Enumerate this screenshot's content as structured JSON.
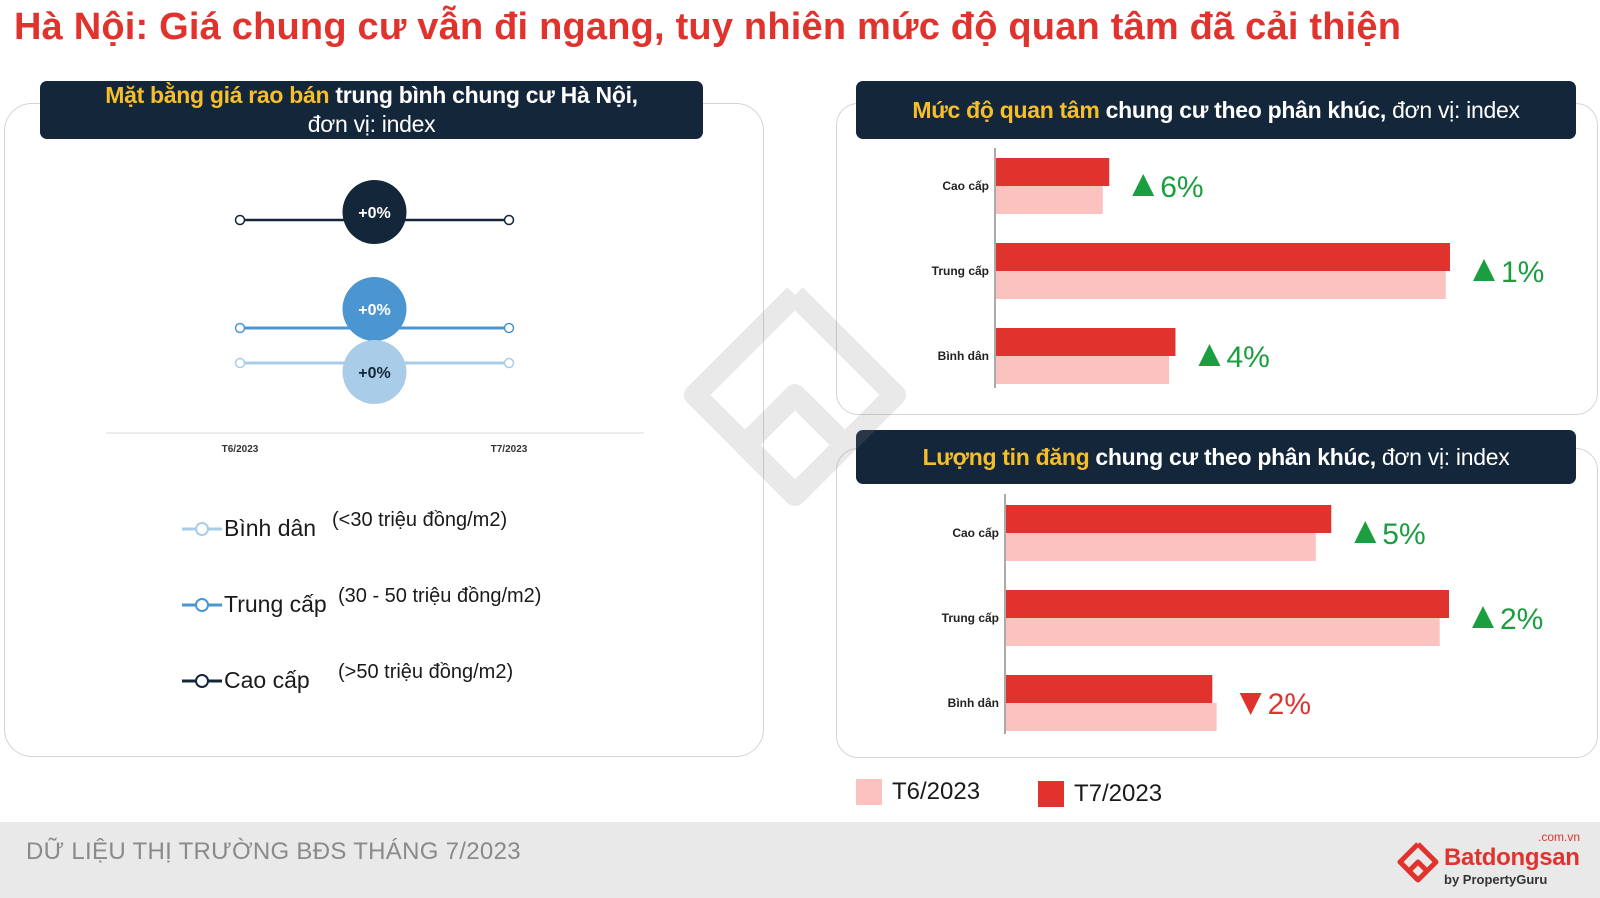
{
  "title": "Hà Nội: Giá chung cư vẫn đi ngang, tuy nhiên mức độ quan tâm đã cải thiện",
  "left_panel": {
    "header_highlight": "Mặt bằng giá rao bán",
    "header_rest": " trung bình chung cư Hà Nội,",
    "header_line2": "đơn vị: index",
    "legend": [
      {
        "label": "Bình dân",
        "range": "(<30 triệu đồng/m2)",
        "color": "#a9cde8"
      },
      {
        "label": "Trung cấp",
        "range": "(30 - 50 triệu đồng/m2)",
        "color": "#4b96d1"
      },
      {
        "label": "Cao cấp",
        "range": "(>50 triệu đồng/m2)",
        "color": "#14263a"
      }
    ]
  },
  "right_top": {
    "header_highlight": "Mức độ quan tâm",
    "header_bold": " chung cư theo phân khúc,",
    "header_rest": " đơn vị: index"
  },
  "right_bottom": {
    "header_highlight": "Lượng tin đăng",
    "header_bold": " chung cư theo phân khúc,",
    "header_rest": " đơn vị: index"
  },
  "bar_legend": [
    {
      "label": "T6/2023",
      "color": "#fbc2c0"
    },
    {
      "label": "T7/2023",
      "color": "#e0332e"
    }
  ],
  "footer": {
    "text": "DỮ LIỆU THỊ TRƯỜNG BĐS THÁNG 7/2023",
    "brand": "Batdongsan",
    "brand_suffix": ".com.vn",
    "brand_by": "by PropertyGuru"
  },
  "colors": {
    "up": "#1a9e3f",
    "down": "#e0332e",
    "navy": "#14263a",
    "accent": "#f6bf2a"
  },
  "chart_data": [
    {
      "type": "line",
      "x": [
        "T6/2023",
        "T7/2023"
      ],
      "series": [
        {
          "name": "Cao cấp",
          "values": [
            100,
            100
          ],
          "change_label": "+0%",
          "color": "#14263a"
        },
        {
          "name": "Trung cấp",
          "values": [
            100,
            100
          ],
          "change_label": "+0%",
          "color": "#4b96d1"
        },
        {
          "name": "Bình dân",
          "values": [
            100,
            100
          ],
          "change_label": "+0%",
          "color": "#a9cde8"
        }
      ]
    },
    {
      "type": "bar",
      "orientation": "horizontal",
      "categories": [
        "Cao cấp",
        "Trung cấp",
        "Bình dân"
      ],
      "series": [
        {
          "name": "T6/2023",
          "values": [
            100,
            421,
            162
          ]
        },
        {
          "name": "T7/2023",
          "values": [
            106,
            425,
            168
          ]
        }
      ],
      "changes": [
        {
          "dir": "up",
          "label": "6%"
        },
        {
          "dir": "up",
          "label": "1%"
        },
        {
          "dir": "up",
          "label": "4%"
        }
      ]
    },
    {
      "type": "bar",
      "orientation": "horizontal",
      "categories": [
        "Cao cấp",
        "Trung cấp",
        "Bình dân"
      ],
      "series": [
        {
          "name": "T6/2023",
          "values": [
            100,
            140,
            68
          ]
        },
        {
          "name": "T7/2023",
          "values": [
            105,
            143,
            66.6
          ]
        }
      ],
      "changes": [
        {
          "dir": "up",
          "label": "5%"
        },
        {
          "dir": "up",
          "label": "2%"
        },
        {
          "dir": "down",
          "label": "2%"
        }
      ]
    }
  ]
}
